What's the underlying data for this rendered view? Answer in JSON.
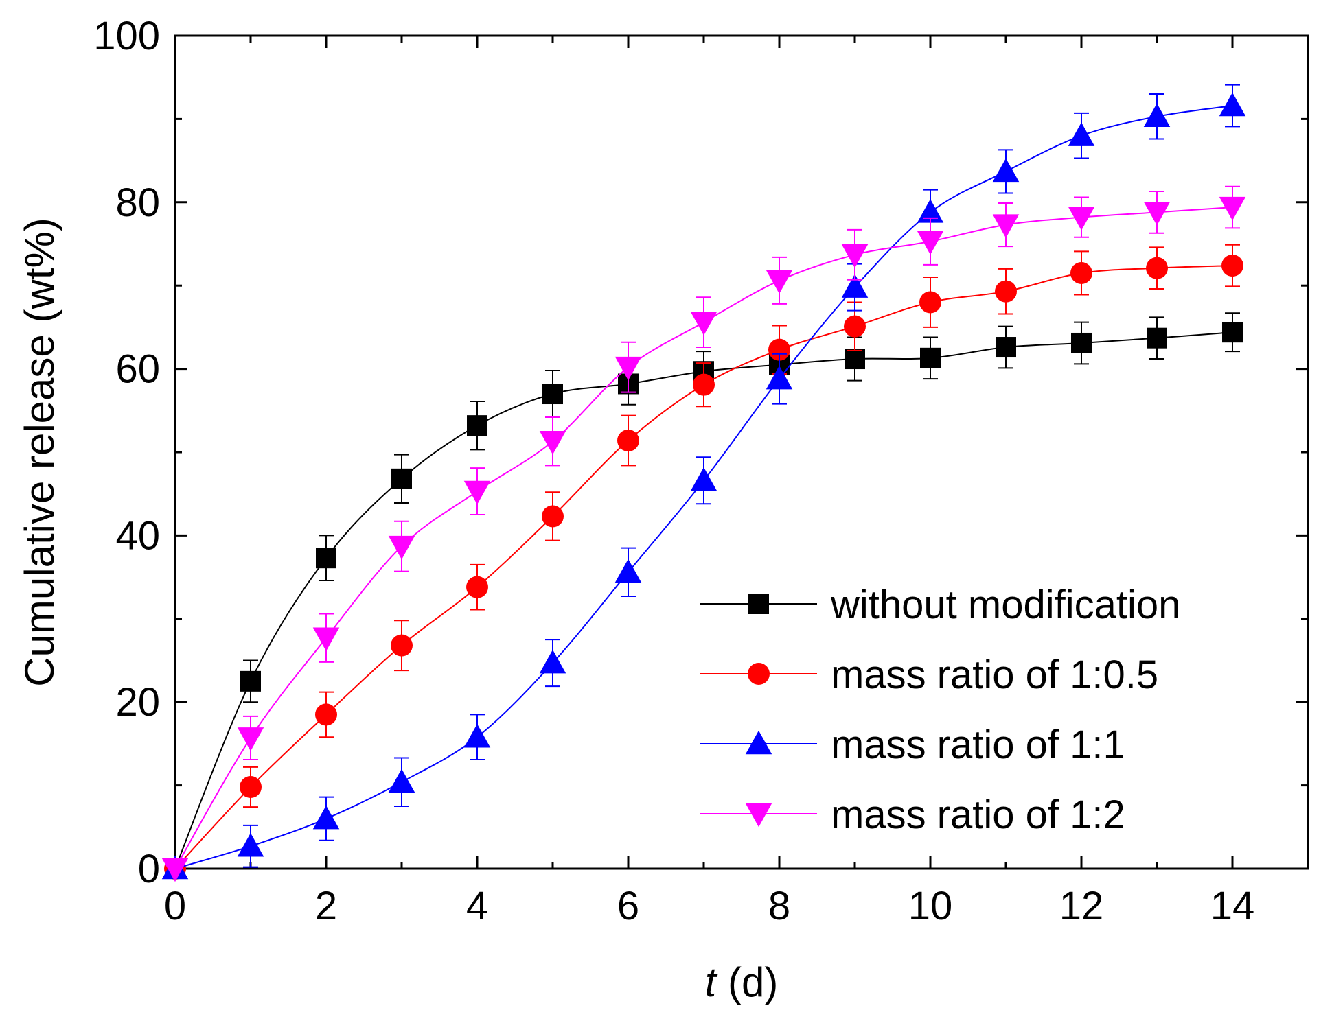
{
  "chart_data": {
    "type": "line",
    "title": "",
    "xlabel": {
      "italic": "t",
      "rest": " (d)"
    },
    "ylabel": "Cumulative release (wt%)",
    "xlim": [
      0,
      15
    ],
    "ylim": [
      0,
      100
    ],
    "x_ticks": [
      0,
      2,
      4,
      6,
      8,
      10,
      12,
      14
    ],
    "x_ticks_minor": [
      1,
      3,
      5,
      7,
      9,
      11,
      13,
      15
    ],
    "y_ticks": [
      0,
      20,
      40,
      60,
      80,
      100
    ],
    "y_ticks_minor": [
      10,
      30,
      50,
      70,
      90
    ],
    "grid": false,
    "legend_position": "bottom-right",
    "x": [
      0,
      1,
      2,
      3,
      4,
      5,
      6,
      7,
      8,
      9,
      10,
      11,
      12,
      13,
      14
    ],
    "series": [
      {
        "name": "without modification",
        "color": "#000000",
        "marker": "square",
        "values": [
          0,
          22.5,
          37.3,
          46.8,
          53.2,
          57.0,
          58.2,
          59.7,
          60.5,
          61.2,
          61.3,
          62.6,
          63.1,
          63.7,
          64.4
        ],
        "errors": [
          0,
          2.5,
          2.7,
          2.9,
          2.9,
          2.8,
          2.5,
          2.4,
          2.5,
          2.6,
          2.5,
          2.5,
          2.5,
          2.5,
          2.3
        ]
      },
      {
        "name": "mass ratio of 1:0.5",
        "color": "#ff0000",
        "marker": "circle",
        "values": [
          0,
          9.8,
          18.5,
          26.8,
          33.8,
          42.3,
          51.4,
          58.1,
          62.3,
          65.1,
          68.0,
          69.3,
          71.5,
          72.1,
          72.4
        ],
        "errors": [
          0,
          2.4,
          2.7,
          3.0,
          2.7,
          2.9,
          3.0,
          2.6,
          2.9,
          2.9,
          3.0,
          2.7,
          2.6,
          2.5,
          2.5
        ]
      },
      {
        "name": "mass ratio of 1:1",
        "color": "#0000ff",
        "marker": "triangle-up",
        "values": [
          0,
          2.7,
          6.0,
          10.4,
          15.8,
          24.7,
          35.6,
          46.6,
          58.8,
          69.8,
          78.8,
          83.7,
          88.0,
          90.3,
          91.6
        ],
        "errors": [
          0,
          2.5,
          2.6,
          2.9,
          2.7,
          2.8,
          2.9,
          2.8,
          3.0,
          2.8,
          2.7,
          2.6,
          2.7,
          2.7,
          2.5
        ]
      },
      {
        "name": "mass ratio of 1:2",
        "color": "#ff00ff",
        "marker": "triangle-down",
        "values": [
          0,
          15.7,
          27.7,
          38.7,
          45.3,
          51.3,
          60.2,
          65.6,
          70.6,
          73.7,
          75.3,
          77.3,
          78.2,
          78.8,
          79.4
        ],
        "errors": [
          0,
          2.6,
          2.9,
          3.0,
          2.8,
          2.9,
          3.0,
          3.0,
          2.8,
          3.0,
          2.8,
          2.6,
          2.4,
          2.5,
          2.5
        ]
      }
    ]
  }
}
